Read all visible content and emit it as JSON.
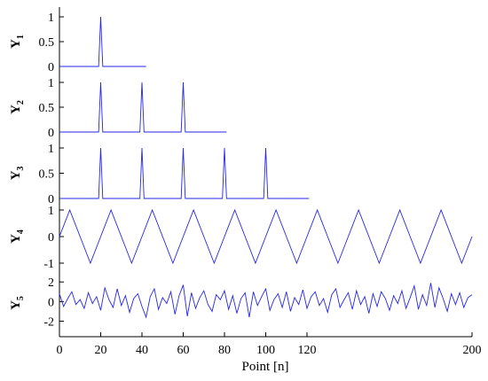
{
  "chart_data": {
    "type": "line",
    "xlabel": "Point [n]",
    "xlim": [
      0,
      200
    ],
    "x_ticks": [
      0,
      20,
      40,
      60,
      80,
      100,
      120,
      200
    ],
    "line_color": "#2626e6",
    "panels": [
      {
        "id": "y1",
        "ylabel": "Y",
        "ylabel_sub": "1",
        "ylim": [
          0,
          1
        ],
        "y_ticks": [
          0,
          0.5,
          1
        ],
        "x": [
          0,
          19,
          20,
          21,
          42
        ],
        "y": [
          0,
          0,
          1,
          0,
          0
        ]
      },
      {
        "id": "y2",
        "ylabel": "Y",
        "ylabel_sub": "2",
        "ylim": [
          0,
          1
        ],
        "y_ticks": [
          0,
          0.5,
          1
        ],
        "x": [
          0,
          19,
          20,
          21,
          39,
          40,
          41,
          59,
          60,
          61,
          81
        ],
        "y": [
          0,
          0,
          1,
          0,
          0,
          1,
          0,
          0,
          1,
          0,
          0
        ]
      },
      {
        "id": "y3",
        "ylabel": "Y",
        "ylabel_sub": "3",
        "ylim": [
          0,
          1
        ],
        "y_ticks": [
          0,
          0.5,
          1
        ],
        "x": [
          0,
          19,
          20,
          21,
          39,
          40,
          41,
          59,
          60,
          61,
          79,
          80,
          81,
          99,
          100,
          101,
          121
        ],
        "y": [
          0,
          0,
          1,
          0,
          0,
          1,
          0,
          0,
          1,
          0,
          0,
          1,
          0,
          0,
          1,
          0,
          0
        ]
      },
      {
        "id": "y4",
        "ylabel": "Y",
        "ylabel_sub": "4",
        "ylim": [
          -1,
          1
        ],
        "y_ticks": [
          -1,
          0,
          1
        ],
        "x": [
          0,
          5,
          10,
          15,
          20,
          25,
          30,
          35,
          40,
          45,
          50,
          55,
          60,
          65,
          70,
          75,
          80,
          85,
          90,
          95,
          100,
          105,
          110,
          115,
          120,
          125,
          130,
          135,
          140,
          145,
          150,
          155,
          160,
          165,
          170,
          175,
          180,
          185,
          190,
          195,
          200
        ],
        "y": [
          0,
          1,
          0,
          -1,
          0,
          1,
          0,
          -1,
          0,
          1,
          0,
          -1,
          0,
          1,
          0,
          -1,
          0,
          1,
          0,
          -1,
          0,
          1,
          0,
          -1,
          0,
          1,
          0,
          -1,
          0,
          1,
          0,
          -1,
          0,
          1,
          0,
          -1,
          0,
          1,
          0,
          -1,
          0
        ]
      },
      {
        "id": "y5",
        "ylabel": "Y",
        "ylabel_sub": "5",
        "ylim": [
          -2.5,
          2.2
        ],
        "y_ticks": [
          -2,
          0,
          2
        ],
        "x": [
          0,
          2,
          4,
          6,
          8,
          10,
          12,
          14,
          16,
          18,
          20,
          22,
          24,
          26,
          28,
          30,
          32,
          34,
          36,
          38,
          40,
          42,
          44,
          46,
          48,
          50,
          52,
          54,
          56,
          58,
          60,
          62,
          64,
          66,
          68,
          70,
          72,
          74,
          76,
          78,
          80,
          82,
          84,
          86,
          88,
          90,
          92,
          94,
          96,
          98,
          100,
          102,
          104,
          106,
          108,
          110,
          112,
          114,
          116,
          118,
          120,
          122,
          124,
          126,
          128,
          130,
          132,
          134,
          136,
          138,
          140,
          142,
          144,
          146,
          148,
          150,
          152,
          154,
          156,
          158,
          160,
          162,
          164,
          166,
          168,
          170,
          172,
          174,
          176,
          178,
          180,
          182,
          184,
          186,
          188,
          190,
          192,
          194,
          196,
          198,
          200
        ],
        "y": [
          0.8,
          -0.5,
          0.3,
          1.0,
          -0.3,
          0.2,
          -0.7,
          0.9,
          -0.2,
          0.5,
          -0.9,
          1.4,
          0.2,
          -0.6,
          1.3,
          -0.4,
          0.6,
          -1.1,
          0.3,
          0.8,
          -0.5,
          -1.6,
          0.5,
          1.3,
          -0.8,
          0.4,
          -0.2,
          1.0,
          -1.3,
          0.6,
          1.7,
          -1.5,
          0.9,
          -0.7,
          0.4,
          1.1,
          -0.3,
          -1.0,
          0.7,
          0.2,
          1.1,
          -0.8,
          0.6,
          -1.2,
          0.3,
          0.9,
          -1.6,
          1.0,
          -0.4,
          0.5,
          1.3,
          -0.9,
          0.2,
          0.8,
          -0.6,
          1.0,
          -1.0,
          0.4,
          -0.3,
          1.2,
          -0.7,
          0.5,
          1.0,
          -0.4,
          0.3,
          -1.1,
          0.7,
          1.3,
          -0.6,
          0.2,
          0.9,
          -0.8,
          1.1,
          -0.3,
          0.5,
          -1.2,
          0.8,
          -0.5,
          1.0,
          0.3,
          -0.9,
          0.6,
          -0.2,
          1.1,
          -0.7,
          0.4,
          1.6,
          -0.8,
          0.7,
          -0.4,
          1.9,
          -0.6,
          1.4,
          0.3,
          -1.0,
          0.8,
          -0.3,
          0.9,
          -0.6,
          0.4,
          0.7
        ]
      }
    ]
  }
}
